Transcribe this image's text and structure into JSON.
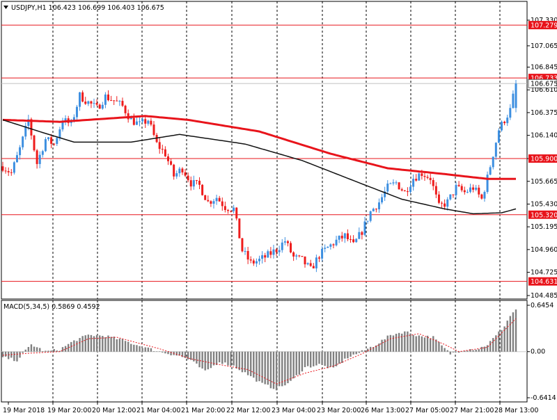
{
  "chart_data": [
    {
      "type": "candlestick",
      "title": "USDJPY,H1",
      "ohlc_header": "106.423 106.699 106.403 106.675",
      "ylim": [
        104.485,
        107.33
      ],
      "y_ticks": [
        "107.330",
        "107.065",
        "106.845",
        "106.610",
        "106.375",
        "106.140",
        "105.900",
        "105.665",
        "105.430",
        "105.195",
        "104.960",
        "104.725",
        "104.485"
      ],
      "horizontal_levels": [
        "107.279",
        "106.733",
        "105.900",
        "105.320",
        "104.631"
      ],
      "current_price": "106.675",
      "x_tick_labels": [
        "19 Mar 2018",
        "19 Mar 20:00",
        "20 Mar 12:00",
        "21 Mar 04:00",
        "21 Mar 20:00",
        "22 Mar 12:00",
        "23 Mar 04:00",
        "23 Mar 20:00",
        "26 Mar 13:00",
        "27 Mar 05:00",
        "27 Mar 21:00",
        "28 Mar 13:00"
      ],
      "price_path": [
        {
          "i": 0,
          "p": 105.82
        },
        {
          "i": 3,
          "p": 105.75
        },
        {
          "i": 6,
          "p": 106.0
        },
        {
          "i": 9,
          "p": 106.3
        },
        {
          "i": 12,
          "p": 105.85
        },
        {
          "i": 15,
          "p": 106.1
        },
        {
          "i": 18,
          "p": 106.05
        },
        {
          "i": 21,
          "p": 106.3
        },
        {
          "i": 24,
          "p": 106.25
        },
        {
          "i": 27,
          "p": 106.55
        },
        {
          "i": 30,
          "p": 106.48
        },
        {
          "i": 33,
          "p": 106.42
        },
        {
          "i": 36,
          "p": 106.54
        },
        {
          "i": 39,
          "p": 106.5
        },
        {
          "i": 42,
          "p": 106.44
        },
        {
          "i": 45,
          "p": 106.3
        },
        {
          "i": 48,
          "p": 106.25
        },
        {
          "i": 51,
          "p": 106.3
        },
        {
          "i": 54,
          "p": 106.05
        },
        {
          "i": 57,
          "p": 105.95
        },
        {
          "i": 60,
          "p": 105.72
        },
        {
          "i": 63,
          "p": 105.8
        },
        {
          "i": 66,
          "p": 105.65
        },
        {
          "i": 69,
          "p": 105.62
        },
        {
          "i": 72,
          "p": 105.45
        },
        {
          "i": 75,
          "p": 105.5
        },
        {
          "i": 78,
          "p": 105.4
        },
        {
          "i": 81,
          "p": 105.38
        },
        {
          "i": 84,
          "p": 104.95
        },
        {
          "i": 87,
          "p": 104.82
        },
        {
          "i": 90,
          "p": 104.85
        },
        {
          "i": 93,
          "p": 104.9
        },
        {
          "i": 96,
          "p": 104.96
        },
        {
          "i": 99,
          "p": 105.05
        },
        {
          "i": 102,
          "p": 104.88
        },
        {
          "i": 105,
          "p": 104.85
        },
        {
          "i": 108,
          "p": 104.75
        },
        {
          "i": 111,
          "p": 104.9
        },
        {
          "i": 114,
          "p": 104.98
        },
        {
          "i": 117,
          "p": 105.05
        },
        {
          "i": 120,
          "p": 105.1
        },
        {
          "i": 123,
          "p": 105.0
        },
        {
          "i": 126,
          "p": 105.15
        },
        {
          "i": 129,
          "p": 105.35
        },
        {
          "i": 132,
          "p": 105.45
        },
        {
          "i": 135,
          "p": 105.6
        },
        {
          "i": 138,
          "p": 105.65
        },
        {
          "i": 141,
          "p": 105.55
        },
        {
          "i": 144,
          "p": 105.7
        },
        {
          "i": 147,
          "p": 105.75
        },
        {
          "i": 150,
          "p": 105.7
        },
        {
          "i": 153,
          "p": 105.4
        },
        {
          "i": 156,
          "p": 105.45
        },
        {
          "i": 159,
          "p": 105.6
        },
        {
          "i": 162,
          "p": 105.55
        },
        {
          "i": 165,
          "p": 105.6
        },
        {
          "i": 168,
          "p": 105.48
        },
        {
          "i": 170,
          "p": 105.7
        },
        {
          "i": 172,
          "p": 105.95
        },
        {
          "i": 174,
          "p": 106.2
        },
        {
          "i": 176,
          "p": 106.3
        },
        {
          "i": 178,
          "p": 106.4
        },
        {
          "i": 180,
          "p": 106.675
        }
      ],
      "series": [
        {
          "name": "red moving average",
          "color": "#e8141b",
          "points": [
            {
              "i": 0,
              "p": 106.3
            },
            {
              "i": 20,
              "p": 106.28
            },
            {
              "i": 50,
              "p": 106.34
            },
            {
              "i": 65,
              "p": 106.3
            },
            {
              "i": 90,
              "p": 106.18
            },
            {
              "i": 115,
              "p": 105.95
            },
            {
              "i": 135,
              "p": 105.8
            },
            {
              "i": 155,
              "p": 105.74
            },
            {
              "i": 170,
              "p": 105.69
            },
            {
              "i": 180,
              "p": 105.69
            }
          ]
        },
        {
          "name": "black moving average",
          "color": "#111111",
          "points": [
            {
              "i": 0,
              "p": 106.3
            },
            {
              "i": 15,
              "p": 106.16
            },
            {
              "i": 25,
              "p": 106.07
            },
            {
              "i": 45,
              "p": 106.07
            },
            {
              "i": 62,
              "p": 106.15
            },
            {
              "i": 85,
              "p": 106.05
            },
            {
              "i": 105,
              "p": 105.88
            },
            {
              "i": 125,
              "p": 105.65
            },
            {
              "i": 140,
              "p": 105.48
            },
            {
              "i": 155,
              "p": 105.38
            },
            {
              "i": 165,
              "p": 105.33
            },
            {
              "i": 175,
              "p": 105.34
            },
            {
              "i": 180,
              "p": 105.38
            }
          ]
        }
      ],
      "colors": {
        "bull": "#3d8fe0",
        "bear": "#ee1c1c",
        "level": "#e8141b",
        "grid": "#000000"
      }
    },
    {
      "type": "bar",
      "title": "MACD(5,34,5) 0.5869 0.4592",
      "ylim": [
        -0.6414,
        0.6454
      ],
      "y_ticks": [
        "0.6454",
        "0.00",
        "-0.6414"
      ],
      "histogram_path": [
        {
          "i": 0,
          "v": -0.08
        },
        {
          "i": 5,
          "v": -0.12
        },
        {
          "i": 10,
          "v": 0.1
        },
        {
          "i": 15,
          "v": 0.0
        },
        {
          "i": 20,
          "v": 0.03
        },
        {
          "i": 25,
          "v": 0.15
        },
        {
          "i": 30,
          "v": 0.23
        },
        {
          "i": 36,
          "v": 0.22
        },
        {
          "i": 42,
          "v": 0.16
        },
        {
          "i": 48,
          "v": 0.08
        },
        {
          "i": 55,
          "v": 0.0
        },
        {
          "i": 62,
          "v": -0.06
        },
        {
          "i": 66,
          "v": -0.12
        },
        {
          "i": 71,
          "v": -0.28
        },
        {
          "i": 76,
          "v": -0.14
        },
        {
          "i": 81,
          "v": -0.2
        },
        {
          "i": 86,
          "v": -0.32
        },
        {
          "i": 91,
          "v": -0.45
        },
        {
          "i": 96,
          "v": -0.52
        },
        {
          "i": 101,
          "v": -0.42
        },
        {
          "i": 106,
          "v": -0.22
        },
        {
          "i": 111,
          "v": -0.18
        },
        {
          "i": 116,
          "v": -0.24
        },
        {
          "i": 121,
          "v": -0.08
        },
        {
          "i": 126,
          "v": 0.0
        },
        {
          "i": 131,
          "v": 0.1
        },
        {
          "i": 136,
          "v": 0.23
        },
        {
          "i": 141,
          "v": 0.28
        },
        {
          "i": 146,
          "v": 0.22
        },
        {
          "i": 151,
          "v": 0.2
        },
        {
          "i": 154,
          "v": 0.08
        },
        {
          "i": 157,
          "v": -0.03
        },
        {
          "i": 162,
          "v": 0.03
        },
        {
          "i": 167,
          "v": 0.04
        },
        {
          "i": 170,
          "v": 0.1
        },
        {
          "i": 173,
          "v": 0.22
        },
        {
          "i": 176,
          "v": 0.36
        },
        {
          "i": 178,
          "v": 0.5
        },
        {
          "i": 180,
          "v": 0.5869
        }
      ],
      "signal_path": [
        {
          "i": 0,
          "v": -0.05
        },
        {
          "i": 10,
          "v": -0.02
        },
        {
          "i": 20,
          "v": 0.0
        },
        {
          "i": 30,
          "v": 0.18
        },
        {
          "i": 40,
          "v": 0.2
        },
        {
          "i": 55,
          "v": 0.04
        },
        {
          "i": 66,
          "v": -0.1
        },
        {
          "i": 76,
          "v": -0.18
        },
        {
          "i": 86,
          "v": -0.25
        },
        {
          "i": 96,
          "v": -0.45
        },
        {
          "i": 106,
          "v": -0.3
        },
        {
          "i": 116,
          "v": -0.2
        },
        {
          "i": 126,
          "v": -0.03
        },
        {
          "i": 136,
          "v": 0.18
        },
        {
          "i": 146,
          "v": 0.25
        },
        {
          "i": 155,
          "v": 0.1
        },
        {
          "i": 160,
          "v": 0.0
        },
        {
          "i": 170,
          "v": 0.06
        },
        {
          "i": 180,
          "v": 0.4592
        }
      ],
      "colors": {
        "histogram": "#808080",
        "signal": "#e8141b"
      }
    }
  ]
}
